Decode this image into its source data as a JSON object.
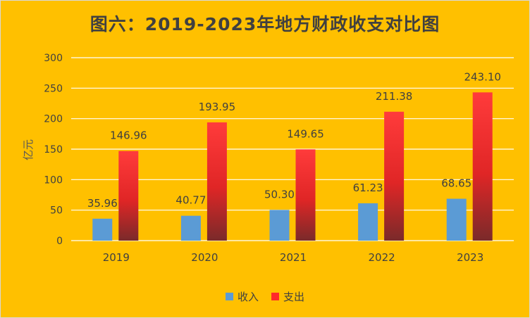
{
  "title": "图六：2019-2023年地方财政收支对比图",
  "chart_data": {
    "type": "bar",
    "categories": [
      "2019",
      "2020",
      "2021",
      "2022",
      "2023"
    ],
    "series": [
      {
        "name": "收入",
        "values": [
          35.96,
          40.77,
          50.3,
          61.23,
          68.65
        ],
        "labels": [
          "35.96",
          "40.77",
          "50.30",
          "61.23",
          "68.65"
        ],
        "color": "#5b9bd5"
      },
      {
        "name": "支出",
        "values": [
          146.96,
          193.95,
          149.65,
          211.38,
          243.1
        ],
        "labels": [
          "146.96",
          "193.95",
          "149.65",
          "211.38",
          "243.10"
        ],
        "color": "#ff2a2a"
      }
    ],
    "ylabel": "亿元",
    "ylim": [
      0,
      300
    ],
    "yticks": [
      "0",
      "50",
      "100",
      "150",
      "200",
      "250",
      "300"
    ],
    "grid": true,
    "legend_position": "bottom"
  }
}
